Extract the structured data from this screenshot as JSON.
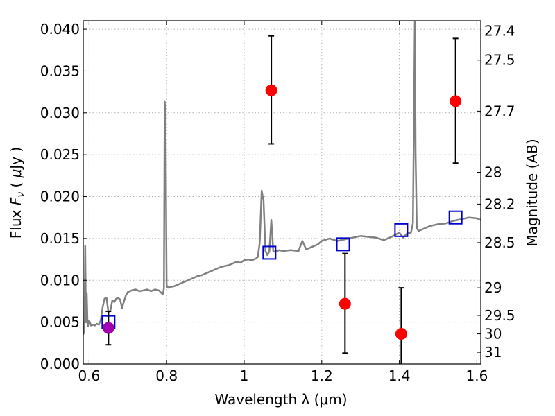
{
  "chart_data": {
    "type": "scatter",
    "xlabel": "Wavelength  λ (μm)",
    "ylabel": "Flux  F_ν  ( μJy )",
    "ylabel_right": "Magnitude (AB)",
    "xlim": [
      0.585,
      1.61
    ],
    "ylim": [
      0.0,
      0.041
    ],
    "grid": true,
    "x_ticks": [
      0.6,
      0.8,
      1.0,
      1.2,
      1.4,
      1.6
    ],
    "x_tick_labels": [
      "0.6",
      "0.8",
      "1",
      "1.2",
      "1.4",
      "1.6"
    ],
    "y_ticks": [
      0.0,
      0.005,
      0.01,
      0.015,
      0.02,
      0.025,
      0.03,
      0.035,
      0.04
    ],
    "y_tick_labels": [
      "0.000",
      "0.005",
      "0.010",
      "0.015",
      "0.020",
      "0.025",
      "0.030",
      "0.035",
      "0.040"
    ],
    "mag_ticks": [
      {
        "label": "27.4",
        "flux": 0.0398
      },
      {
        "label": "27.5",
        "flux": 0.0363
      },
      {
        "label": "27.7",
        "flux": 0.0302
      },
      {
        "label": "28",
        "flux": 0.0229
      },
      {
        "label": "28.2",
        "flux": 0.0191
      },
      {
        "label": "28.5",
        "flux": 0.0145
      },
      {
        "label": "29",
        "flux": 0.0091
      },
      {
        "label": "29.5",
        "flux": 0.0058
      },
      {
        "label": "30",
        "flux": 0.0036
      },
      {
        "label": "31",
        "flux": 0.0014
      }
    ],
    "series": [
      {
        "name": "Model spectrum",
        "style": "line",
        "color": "#808080",
        "x": [
          0.585,
          0.588,
          0.59,
          0.592,
          0.594,
          0.596,
          0.598,
          0.6,
          0.605,
          0.61,
          0.615,
          0.62,
          0.625,
          0.63,
          0.635,
          0.64,
          0.645,
          0.65,
          0.655,
          0.66,
          0.665,
          0.67,
          0.675,
          0.68,
          0.685,
          0.69,
          0.695,
          0.7,
          0.71,
          0.72,
          0.73,
          0.74,
          0.75,
          0.76,
          0.77,
          0.78,
          0.79,
          0.793,
          0.795,
          0.797,
          0.8,
          0.802,
          0.805,
          0.81,
          0.82,
          0.83,
          0.84,
          0.85,
          0.86,
          0.87,
          0.88,
          0.89,
          0.9,
          0.91,
          0.92,
          0.93,
          0.94,
          0.95,
          0.96,
          0.97,
          0.98,
          0.99,
          1.0,
          1.01,
          1.02,
          1.03,
          1.035,
          1.04,
          1.045,
          1.05,
          1.055,
          1.06,
          1.065,
          1.07,
          1.075,
          1.08,
          1.09,
          1.1,
          1.12,
          1.14,
          1.15,
          1.16,
          1.17,
          1.18,
          1.19,
          1.2,
          1.22,
          1.24,
          1.26,
          1.28,
          1.3,
          1.32,
          1.34,
          1.36,
          1.38,
          1.4,
          1.41,
          1.42,
          1.43,
          1.435,
          1.438,
          1.44,
          1.442,
          1.445,
          1.45,
          1.46,
          1.47,
          1.48,
          1.5,
          1.52,
          1.54,
          1.56,
          1.58,
          1.6,
          1.61
        ],
        "y": [
          0.0035,
          0.004,
          0.0141,
          0.005,
          0.0085,
          0.0048,
          0.0045,
          0.0052,
          0.0046,
          0.0047,
          0.0046,
          0.0048,
          0.0047,
          0.0052,
          0.0068,
          0.0078,
          0.0079,
          0.0062,
          0.0064,
          0.0076,
          0.0074,
          0.0078,
          0.0079,
          0.0077,
          0.0067,
          0.0075,
          0.0082,
          0.0086,
          0.0088,
          0.0089,
          0.0087,
          0.0088,
          0.0089,
          0.0087,
          0.0089,
          0.0088,
          0.0083,
          0.009,
          0.0314,
          0.03,
          0.0092,
          0.0093,
          0.0091,
          0.0092,
          0.0093,
          0.0095,
          0.0097,
          0.0099,
          0.0101,
          0.0103,
          0.0105,
          0.0106,
          0.0108,
          0.011,
          0.0112,
          0.0114,
          0.0116,
          0.0117,
          0.0118,
          0.012,
          0.0122,
          0.0121,
          0.0124,
          0.0125,
          0.0124,
          0.0126,
          0.0128,
          0.0145,
          0.0207,
          0.0195,
          0.0135,
          0.013,
          0.0135,
          0.0172,
          0.0135,
          0.0134,
          0.0136,
          0.0135,
          0.0136,
          0.0135,
          0.0147,
          0.0137,
          0.0139,
          0.0141,
          0.0143,
          0.0147,
          0.015,
          0.0147,
          0.0149,
          0.0151,
          0.0153,
          0.0152,
          0.0151,
          0.0148,
          0.0152,
          0.0157,
          0.0151,
          0.0156,
          0.0157,
          0.0168,
          0.03,
          0.0415,
          0.025,
          0.0162,
          0.0159,
          0.0161,
          0.0163,
          0.0165,
          0.0167,
          0.0168,
          0.0171,
          0.0173,
          0.0175,
          0.0174,
          0.0172
        ]
      },
      {
        "name": "Model band fluxes",
        "style": "open-square",
        "color": "#0000cc",
        "x": [
          0.65,
          1.065,
          1.255,
          1.405,
          1.545
        ],
        "y": [
          0.005,
          0.0133,
          0.0143,
          0.016,
          0.0175
        ]
      },
      {
        "name": "Observed fluxes",
        "style": "filled-circle",
        "color": "#ff0000",
        "x": [
          1.07,
          1.26,
          1.405,
          1.545
        ],
        "y": [
          0.0327,
          0.0072,
          0.0036,
          0.0314
        ],
        "err_low": [
          0.0263,
          0.0013,
          -0.0001,
          0.024
        ],
        "err_high": [
          0.0392,
          0.0132,
          0.0091,
          0.0389
        ]
      },
      {
        "name": "Observed optical flux",
        "style": "filled-circle",
        "color": "#a000b0",
        "x": [
          0.65
        ],
        "y": [
          0.0043
        ],
        "err_low": [
          0.0023
        ],
        "err_high": [
          0.0063
        ]
      }
    ]
  }
}
